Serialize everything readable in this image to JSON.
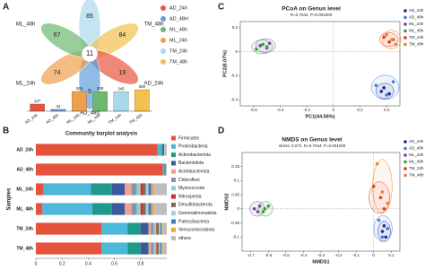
{
  "panels": [
    "A",
    "B",
    "C",
    "D"
  ],
  "chart_data": [
    {
      "type": "venn",
      "sets": [
        {
          "name": "TM_24h",
          "value": 85,
          "color": "#a9d8ea"
        },
        {
          "name": "TM_48h",
          "value": 84,
          "color": "#f2c14e"
        },
        {
          "name": "AD_24h",
          "value": 19,
          "color": "#e8553f"
        },
        {
          "name": "AD_48h",
          "value": 5,
          "color": "#5f9ed8"
        },
        {
          "name": "ML_24h",
          "value": 74,
          "color": "#f0a04a"
        },
        {
          "name": "ML_48h",
          "value": 67,
          "color": "#6db86e"
        }
      ],
      "center": 11,
      "legend": [
        {
          "name": "AD_24h",
          "color": "#e8553f"
        },
        {
          "name": "AD_48H",
          "color": "#5f9ed8"
        },
        {
          "name": "ML_48h",
          "color": "#6db86e"
        },
        {
          "name": "ML_24h",
          "color": "#f0a04a"
        },
        {
          "name": "TM_24h",
          "color": "#a9d8ea"
        },
        {
          "name": "TM_48h",
          "color": "#f2c14e"
        }
      ]
    },
    {
      "type": "bar",
      "categories": [
        "AD_24h",
        "AD_48h",
        "ML_24h",
        "ML_48h",
        "TM_24h",
        "TM_48h"
      ],
      "values": [
        127,
        34,
        349,
        348,
        345,
        380
      ],
      "colors": [
        "#e8553f",
        "#5f9ed8",
        "#f0a04a",
        "#6db86e",
        "#a9d8ea",
        "#f2c14e"
      ]
    },
    {
      "type": "stacked-hbar",
      "title": "Community barplot analysis",
      "ylabel": "Samples",
      "categories": [
        "AD_24h",
        "AD_48h",
        "ML_24h",
        "ML_48h",
        "TM_24h",
        "TM_48h"
      ],
      "xlim": [
        0,
        1
      ],
      "xticks": [
        0,
        0.2,
        0.4,
        0.6,
        0.8
      ],
      "series": [
        {
          "name": "Firmicutes",
          "color": "#e5533c",
          "values": [
            0.93,
            0.97,
            0.06,
            0.05,
            0.5,
            0.5
          ]
        },
        {
          "name": "Proteobacteria",
          "color": "#4db8d8",
          "values": [
            0.03,
            0.01,
            0.36,
            0.38,
            0.2,
            0.2
          ]
        },
        {
          "name": "Actinobacteriota",
          "color": "#1f9a8a",
          "values": [
            0.01,
            0.005,
            0.16,
            0.15,
            0.1,
            0.1
          ]
        },
        {
          "name": "Bacteroidota",
          "color": "#3a5a9c",
          "values": [
            0.01,
            0.005,
            0.1,
            0.1,
            0.06,
            0.06
          ]
        },
        {
          "name": "Acidobacteriota",
          "color": "#f1a18f",
          "values": [
            0,
            0,
            0.05,
            0.05,
            0.02,
            0.02
          ]
        },
        {
          "name": "Chloroflexi",
          "color": "#8494b4",
          "values": [
            0,
            0,
            0.04,
            0.04,
            0.02,
            0.02
          ]
        },
        {
          "name": "Myxococcota",
          "color": "#90d1c2",
          "values": [
            0,
            0,
            0.03,
            0.03,
            0.02,
            0.02
          ]
        },
        {
          "name": "Nitrospirota",
          "color": "#c9302c",
          "values": [
            0,
            0,
            0.02,
            0.02,
            0.01,
            0.01
          ]
        },
        {
          "name": "Desulfobacterota",
          "color": "#7d6b53",
          "values": [
            0,
            0,
            0.02,
            0.02,
            0.01,
            0.01
          ]
        },
        {
          "name": "Gemmatimonadota",
          "color": "#a1cee0",
          "values": [
            0,
            0,
            0.02,
            0.02,
            0.01,
            0.01
          ]
        },
        {
          "name": "Patescibacteria",
          "color": "#3f7dbf",
          "values": [
            0,
            0,
            0.02,
            0.02,
            0.01,
            0.01
          ]
        },
        {
          "name": "Verrucomicrobiota",
          "color": "#e6a83b",
          "values": [
            0,
            0,
            0.02,
            0.02,
            0.01,
            0.01
          ]
        },
        {
          "name": "others",
          "color": "#bdbdbd",
          "values": [
            0.02,
            0.01,
            0.1,
            0.1,
            0.03,
            0.03
          ]
        }
      ]
    },
    {
      "type": "scatter",
      "title": "PCoA on Genus level",
      "subtitle": "R=0.7044, P=0.001000",
      "xlabel": "PC1(44.56%)",
      "ylabel": "PC2(8.07%)",
      "xlim": [
        -0.7,
        0.5
      ],
      "xticks": [
        -0.6,
        -0.4,
        -0.2,
        0,
        0.2,
        0.4
      ],
      "ylim": [
        -0.45,
        0.25
      ],
      "yticks": [
        -0.4,
        -0.2,
        0,
        0.2
      ],
      "series": [
        {
          "name": "AD_24h",
          "color": "#1a2a8c",
          "x": [
            0.38,
            0.42,
            0.36
          ],
          "values": [
            -0.3,
            -0.35,
            -0.33
          ]
        },
        {
          "name": "AD_48h",
          "color": "#3d7ee0",
          "x": [
            0.32,
            0.4,
            0.45
          ],
          "values": [
            -0.28,
            -0.36,
            -0.25
          ]
        },
        {
          "name": "ML_24h",
          "color": "#7b3fa0",
          "x": [
            -0.55,
            -0.5,
            -0.48
          ],
          "values": [
            0.05,
            0.03,
            0.07
          ]
        },
        {
          "name": "ML_48h",
          "color": "#3aa040",
          "x": [
            -0.58,
            -0.53,
            -0.5
          ],
          "values": [
            0.02,
            0.06,
            0.04
          ]
        },
        {
          "name": "TM_24h",
          "color": "#e2322a",
          "x": [
            0.38,
            0.42,
            0.45
          ],
          "values": [
            0.12,
            0.08,
            0.1
          ]
        },
        {
          "name": "TM_48h",
          "color": "#f08020",
          "x": [
            0.4,
            0.44,
            0.47
          ],
          "values": [
            0.14,
            0.1,
            0.06
          ]
        }
      ]
    },
    {
      "type": "scatter",
      "title": "NMDS on Genus level",
      "subtitle": "stress: 0.074, R=0.7044, P=0.001000",
      "xlabel": "NMDS1",
      "ylabel": "NMDS2",
      "xlim": [
        -0.75,
        0.15
      ],
      "xticks": [
        -0.7,
        -0.6,
        -0.5,
        -0.4,
        -0.3,
        -0.2,
        -0.1,
        0,
        0.1
      ],
      "ylim": [
        -0.15,
        0.2
      ],
      "yticks": [
        -0.1,
        -0.05,
        0,
        0.05,
        0.1,
        0.15
      ],
      "series": [
        {
          "name": "AD_24h",
          "color": "#1a2a8c",
          "x": [
            0.05,
            0.07,
            0.06
          ],
          "values": [
            -0.08,
            -0.1,
            -0.06
          ]
        },
        {
          "name": "AD_48h",
          "color": "#3d7ee0",
          "x": [
            0.03,
            0.08,
            0.05
          ],
          "values": [
            -0.04,
            -0.07,
            -0.1
          ]
        },
        {
          "name": "ML_24h",
          "color": "#7b3fa0",
          "x": [
            -0.68,
            -0.66,
            -0.65
          ],
          "values": [
            0,
            -0.01,
            0.01
          ]
        },
        {
          "name": "ML_48h",
          "color": "#3aa040",
          "x": [
            -0.62,
            -0.6,
            -0.63
          ],
          "values": [
            0,
            0.01,
            -0.01
          ]
        },
        {
          "name": "TM_24h",
          "color": "#e2322a",
          "x": [
            0,
            0.04,
            0.06
          ],
          "values": [
            0.08,
            0.04,
            0
          ]
        },
        {
          "name": "TM_48h",
          "color": "#f08020",
          "x": [
            0.02,
            0.05,
            0.08
          ],
          "values": [
            0.16,
            0.06,
            0.02
          ]
        }
      ]
    }
  ]
}
